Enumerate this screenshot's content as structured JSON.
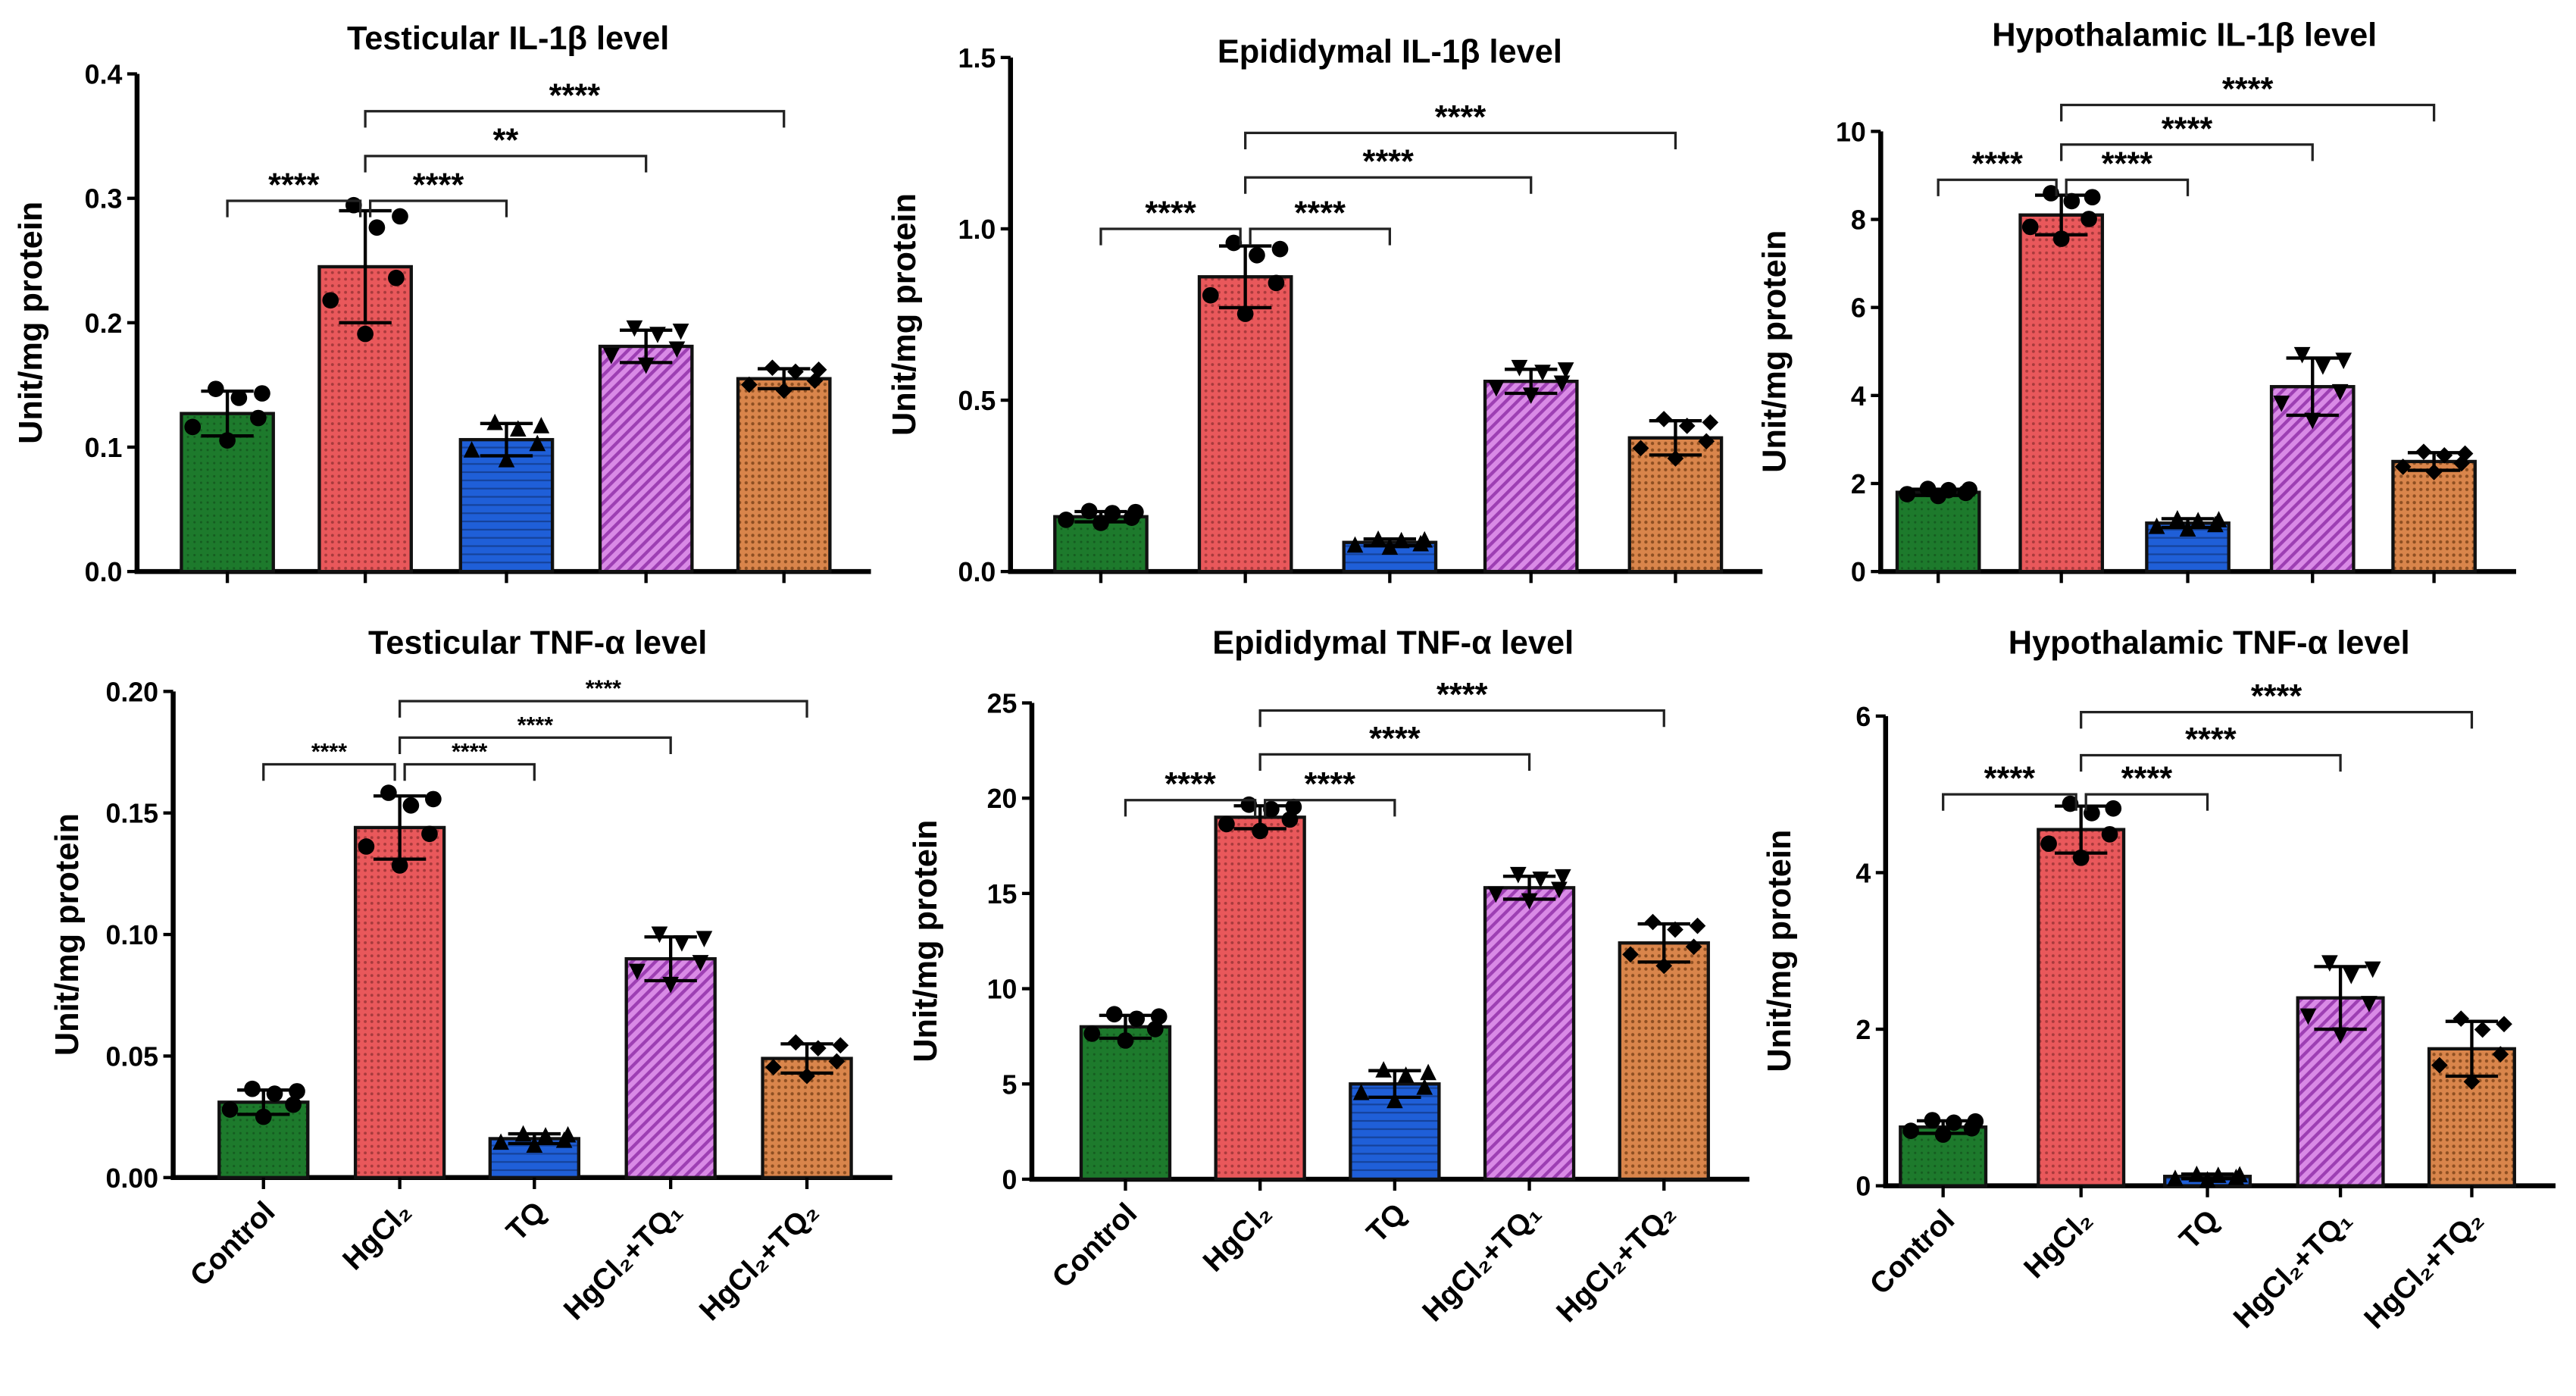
{
  "groups": [
    "Control",
    "HgCl₂",
    "TQ",
    "HgCl₂+TQ₁",
    "HgCl₂+TQ₂"
  ],
  "colors": [
    "#1d7a2c",
    "#e9585b",
    "#1f5fd8",
    "#c25fd9",
    "#d9854b"
  ],
  "markers": [
    "circle",
    "circle",
    "triangle-up",
    "triangle-down",
    "diamond"
  ],
  "chart_data": [
    {
      "type": "bar",
      "title": "Testicular IL-1β level",
      "ylabel": "Unit/mg protein",
      "ylim": [
        0,
        0.4
      ],
      "yticks": [
        "0.0",
        "0.1",
        "0.2",
        "0.3",
        "0.4"
      ],
      "values": [
        0.127,
        0.245,
        0.106,
        0.181,
        0.155
      ],
      "sd": [
        0.018,
        0.045,
        0.013,
        0.013,
        0.008
      ],
      "comparisons": [
        {
          "from": "Control",
          "to": "HgCl₂",
          "label": "****",
          "level": 0.298
        },
        {
          "from": "HgCl₂",
          "to": "TQ",
          "label": "****",
          "level": 0.298
        },
        {
          "from": "HgCl₂",
          "to": "HgCl₂+TQ₁",
          "label": "**",
          "level": 0.334
        },
        {
          "from": "HgCl₂",
          "to": "HgCl₂+TQ₂",
          "label": "****",
          "level": 0.37
        }
      ]
    },
    {
      "type": "bar",
      "title": "Epididymal IL-1β level",
      "ylabel": "Unit/mg protein",
      "ylim": [
        0,
        1.5
      ],
      "yticks": [
        "0.0",
        "0.5",
        "1.0",
        "1.5"
      ],
      "values": [
        0.16,
        0.86,
        0.085,
        0.555,
        0.39
      ],
      "sd": [
        0.015,
        0.09,
        0.01,
        0.035,
        0.05
      ],
      "comparisons": [
        {
          "from": "Control",
          "to": "HgCl₂",
          "label": "****",
          "level": 1.0
        },
        {
          "from": "HgCl₂",
          "to": "TQ",
          "label": "****",
          "level": 1.0
        },
        {
          "from": "HgCl₂",
          "to": "HgCl₂+TQ₁",
          "label": "****",
          "level": 1.15
        },
        {
          "from": "HgCl₂",
          "to": "HgCl₂+TQ₂",
          "label": "****",
          "level": 1.28
        }
      ]
    },
    {
      "type": "bar",
      "title": "Hypothalamic IL-1β level",
      "ylabel": "Unit/mg protein",
      "ylim": [
        0,
        10
      ],
      "yticks": [
        "0",
        "2",
        "4",
        "6",
        "8",
        "10"
      ],
      "values": [
        1.8,
        8.1,
        1.1,
        4.2,
        2.5
      ],
      "sd": [
        0.07,
        0.45,
        0.1,
        0.65,
        0.2
      ],
      "comparisons": [
        {
          "from": "Control",
          "to": "HgCl₂",
          "label": "****",
          "level": 8.9
        },
        {
          "from": "HgCl₂",
          "to": "TQ",
          "label": "****",
          "level": 8.9
        },
        {
          "from": "HgCl₂",
          "to": "HgCl₂+TQ₁",
          "label": "****",
          "level": 9.7
        },
        {
          "from": "HgCl₂",
          "to": "HgCl₂+TQ₂",
          "label": "****",
          "level": 10.6
        }
      ]
    },
    {
      "type": "bar",
      "title": "Testicular TNF-α level",
      "ylabel": "Unit/mg protein",
      "ylim": [
        0,
        0.2
      ],
      "yticks": [
        "0.00",
        "0.05",
        "0.10",
        "0.15",
        "0.20"
      ],
      "values": [
        0.031,
        0.144,
        0.016,
        0.09,
        0.049
      ],
      "sd": [
        0.005,
        0.013,
        0.002,
        0.009,
        0.006
      ],
      "comparisons": [
        {
          "from": "Control",
          "to": "HgCl₂",
          "label": "****",
          "level": 0.17
        },
        {
          "from": "HgCl₂",
          "to": "TQ",
          "label": "****",
          "level": 0.17
        },
        {
          "from": "HgCl₂",
          "to": "HgCl₂+TQ₁",
          "label": "****",
          "level": 0.181
        },
        {
          "from": "HgCl₂",
          "to": "HgCl₂+TQ₂",
          "label": "****",
          "level": 0.196
        }
      ]
    },
    {
      "type": "bar",
      "title": "Epididymal TNF-α level",
      "ylabel": "Unit/mg protein",
      "ylim": [
        0,
        25
      ],
      "yticks": [
        "0",
        "5",
        "10",
        "15",
        "20",
        "25"
      ],
      "values": [
        8.0,
        19.0,
        5.0,
        15.3,
        12.4
      ],
      "sd": [
        0.6,
        0.6,
        0.7,
        0.6,
        1.0
      ],
      "comparisons": [
        {
          "from": "Control",
          "to": "HgCl₂",
          "label": "****",
          "level": 19.9
        },
        {
          "from": "HgCl₂",
          "to": "TQ",
          "label": "****",
          "level": 19.9
        },
        {
          "from": "HgCl₂",
          "to": "HgCl₂+TQ₁",
          "label": "****",
          "level": 22.3
        },
        {
          "from": "HgCl₂",
          "to": "HgCl₂+TQ₂",
          "label": "****",
          "level": 24.6
        }
      ]
    },
    {
      "type": "bar",
      "title": "Hypothalamic TNF-α level",
      "ylabel": "Unit/mg protein",
      "ylim": [
        0,
        6
      ],
      "yticks": [
        "0",
        "2",
        "4",
        "6"
      ],
      "values": [
        0.75,
        4.55,
        0.12,
        2.4,
        1.75
      ],
      "sd": [
        0.08,
        0.3,
        0.03,
        0.4,
        0.35
      ],
      "comparisons": [
        {
          "from": "Control",
          "to": "HgCl₂",
          "label": "****",
          "level": 5.0
        },
        {
          "from": "HgCl₂",
          "to": "TQ",
          "label": "****",
          "level": 5.0
        },
        {
          "from": "HgCl₂",
          "to": "HgCl₂+TQ₁",
          "label": "****",
          "level": 5.5
        },
        {
          "from": "HgCl₂",
          "to": "HgCl₂+TQ₂",
          "label": "****",
          "level": 6.05
        }
      ]
    }
  ]
}
